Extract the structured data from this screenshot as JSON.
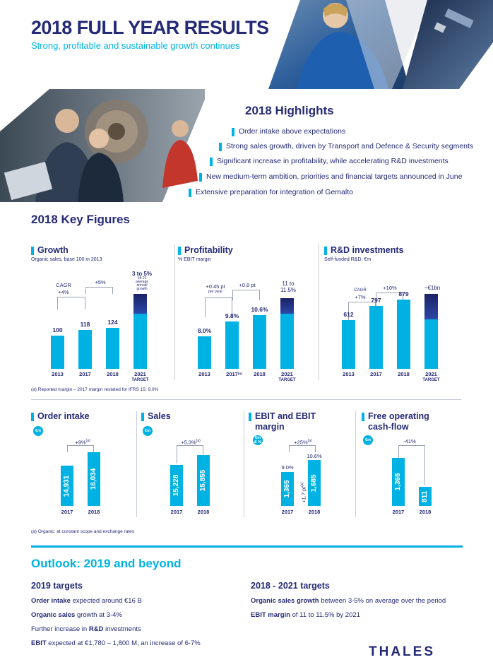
{
  "header": {
    "title": "2018 FULL YEAR RESULTS",
    "subtitle": "Strong, profitable and sustainable growth continues"
  },
  "highlights": {
    "title": "2018 Highlights",
    "items": [
      "Order intake above expectations",
      "Strong sales growth, driven by Transport and Defence & Security segments",
      "Significant increase in profitability, while accelerating R&D investments",
      "New medium-term ambition, priorities and financial targets announced in June",
      "Extensive preparation for integration of Gemalto"
    ]
  },
  "key_figures": {
    "title": "2018 Key Figures",
    "footnote_a": "(a) Reported margin – 2017 margin restated for IFRS 15: 9.0%",
    "footnote_b": "(a) Organic: at constant scope and exchange rates",
    "growth": {
      "title": "Growth",
      "subtitle": "Organic sales, base 100 in 2013",
      "ann_cagr": "CAGR",
      "ann_cagr_val": "+4%",
      "ann_yoy": "+5%",
      "target_line1": "3 to 5%",
      "target_line2": "18-21",
      "target_line3": "average",
      "target_line4": "annual",
      "target_line5": "growth"
    },
    "profitability": {
      "title": "Profitability",
      "subtitle": "% EBIT margin",
      "ann_a": "+0.45 pt",
      "ann_a2": "per year",
      "ann_b": "+0.8 pt",
      "target_line1": "11 to",
      "target_line2": "11.5%",
      "cat_2017_note": "(a)"
    },
    "rd": {
      "title": "R&D investments",
      "subtitle": "Self-funded R&D, €m",
      "ann_cagr": "CAGR",
      "ann_cagr_val": "+7%",
      "ann_yoy": "+10%",
      "target_line1": "~€1bn"
    },
    "target_word": "TARGET",
    "order_intake": {
      "title": "Order intake",
      "badge": "€m",
      "change": "+9%",
      "change_note": "(a)",
      "years": [
        "2017",
        "2018"
      ],
      "labels": [
        "14,931",
        "16,034"
      ]
    },
    "sales": {
      "title": "Sales",
      "badge": "€m",
      "change": "+5.3%",
      "change_note": "(a)",
      "years": [
        "2017",
        "2018"
      ],
      "labels": [
        "15,228",
        "15,855"
      ]
    },
    "ebit": {
      "title_line1": "EBIT and EBIT",
      "title_line2": "margin",
      "badge_line1": "€m",
      "badge_line2": "& %",
      "change": "+25%",
      "change_note": "(a)",
      "years": [
        "2017",
        "2018"
      ],
      "labels": [
        "1,365",
        "1,685"
      ],
      "margins": [
        "9.0%",
        "10.6%"
      ],
      "pt": "+1.7 pt",
      "pt_note": "(a)"
    },
    "fcf": {
      "title_line1": "Free operating",
      "title_line2": "cash-flow",
      "badge": "€m",
      "change": "-41%",
      "years": [
        "2017",
        "2018"
      ],
      "labels": [
        "1,365",
        "811"
      ]
    }
  },
  "chart_data": [
    {
      "type": "bar",
      "title": "Growth",
      "subtitle": "Organic sales, base 100 in 2013",
      "categories": [
        "2013",
        "2017",
        "2018",
        "2021 TARGET"
      ],
      "values": [
        100,
        118,
        124,
        null
      ],
      "value_labels": [
        "100",
        "118",
        "124",
        "3 to 5%"
      ]
    },
    {
      "type": "bar",
      "title": "Profitability",
      "subtitle": "% EBIT margin",
      "categories": [
        "2013",
        "2017",
        "2018",
        "2021 TARGET"
      ],
      "values": [
        8.0,
        9.8,
        10.6,
        null
      ],
      "value_labels": [
        "8.0%",
        "9.8%",
        "10.6%",
        "11 to 11.5%"
      ]
    },
    {
      "type": "bar",
      "title": "R&D investments",
      "subtitle": "Self-funded R&D, €m",
      "categories": [
        "2013",
        "2017",
        "2018",
        "2021 TARGET"
      ],
      "values": [
        612,
        797,
        879,
        null
      ],
      "value_labels": [
        "612",
        "797",
        "879",
        "~€1bn"
      ]
    },
    {
      "type": "bar",
      "title": "Order intake",
      "categories": [
        "2017",
        "2018"
      ],
      "values": [
        14931,
        16034
      ]
    },
    {
      "type": "bar",
      "title": "Sales",
      "categories": [
        "2017",
        "2018"
      ],
      "values": [
        15228,
        15855
      ]
    },
    {
      "type": "bar",
      "title": "EBIT and EBIT margin",
      "categories": [
        "2017",
        "2018"
      ],
      "values": [
        1365,
        1685
      ],
      "margins": [
        9.0,
        10.6
      ]
    },
    {
      "type": "bar",
      "title": "Free operating cash-flow",
      "categories": [
        "2017",
        "2018"
      ],
      "values": [
        1365,
        811
      ]
    }
  ],
  "outlook": {
    "title": "Outlook: 2019 and beyond",
    "left": {
      "heading": "2019 targets",
      "l1_bold": "Order intake",
      "l1_rest": " expected around €16 B",
      "l2_bold": "Organic sales",
      "l2_rest": " growth at 3-4%",
      "l3_pre": "Further increase in ",
      "l3_bold": "R&D",
      "l3_rest": " investments",
      "l4_bold": "EBIT",
      "l4_rest": " expected at €1,780 – 1,800 M,  an increase of 6-7%"
    },
    "right": {
      "heading": "2018 - 2021 targets",
      "l1_bold": "Organic sales growth",
      "l1_rest": " between 3-5% on average over the period",
      "l2_bold": "EBIT margin",
      "l2_rest": " of 11 to 11.5% by 2021"
    }
  },
  "logo": {
    "text": "THALES"
  },
  "colors": {
    "navy": "#242a75",
    "cyan": "#00b2e3",
    "dark_bar": "#1a2266"
  },
  "icons": {
    "photo_top": "pilot-cockpit-photo",
    "photo_satellite": "satellite-photo",
    "photo_left": "engineers-photo"
  }
}
